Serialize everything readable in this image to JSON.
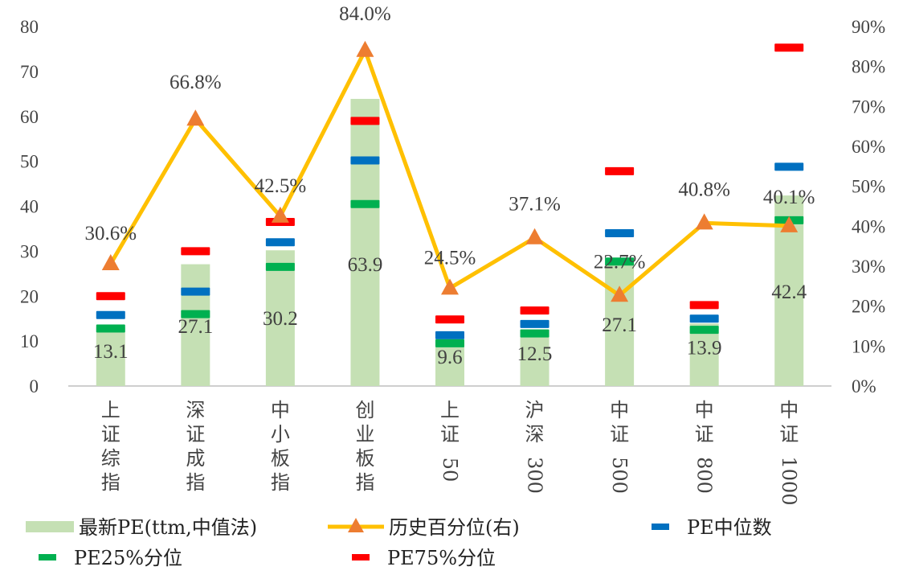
{
  "chart_data": {
    "type": "bar",
    "categories": [
      "上证综指",
      "深证成指",
      "中小板指",
      "创业板指",
      "上证50",
      "沪深300",
      "中证500",
      "中证800",
      "中证1000"
    ],
    "y_left": {
      "ylim": [
        0,
        80
      ],
      "ticks": [
        "0",
        "10",
        "20",
        "30",
        "40",
        "50",
        "60",
        "70",
        "80"
      ]
    },
    "y_right": {
      "ylim": [
        0,
        90
      ],
      "ticks": [
        "0%",
        "10%",
        "20%",
        "30%",
        "40%",
        "50%",
        "60%",
        "70%",
        "80%",
        "90%"
      ]
    },
    "series": [
      {
        "name": "最新PE(ttm,中值法)",
        "type": "bar",
        "axis": "left",
        "color": "#c5e0b4",
        "values": [
          13.1,
          27.1,
          30.2,
          63.9,
          9.6,
          12.5,
          27.1,
          13.9,
          42.4
        ],
        "labels": [
          "13.1",
          "27.1",
          "30.2",
          "63.9",
          "9.6",
          "12.5",
          "27.1",
          "13.9",
          "42.4"
        ]
      },
      {
        "name": "历史百分位(右)",
        "type": "line",
        "axis": "right",
        "color": "#ffc000",
        "marker_color": "#ed7d31",
        "values": [
          30.6,
          66.8,
          42.5,
          84.0,
          24.5,
          37.1,
          22.7,
          40.8,
          40.1
        ],
        "labels": [
          "30.6%",
          "66.8%",
          "42.5%",
          "84.0%",
          "24.5%",
          "37.1%",
          "22.7%",
          "40.8%",
          "40.1%"
        ]
      },
      {
        "name": "PE中位数",
        "type": "marker",
        "axis": "left",
        "color": "#0070c0",
        "values": [
          15.8,
          21,
          32,
          50.2,
          11.3,
          13.8,
          34,
          15,
          48.8
        ]
      },
      {
        "name": "PE25%分位",
        "type": "marker",
        "axis": "left",
        "color": "#00b050",
        "values": [
          12.8,
          16,
          26.5,
          40.5,
          9.5,
          11.7,
          27.7,
          12.5,
          36.9
        ]
      },
      {
        "name": "PE75%分位",
        "type": "marker",
        "axis": "left",
        "color": "#ff0000",
        "values": [
          20,
          30,
          36.5,
          59,
          14.8,
          16.8,
          47.8,
          18,
          75.3
        ]
      }
    ]
  }
}
